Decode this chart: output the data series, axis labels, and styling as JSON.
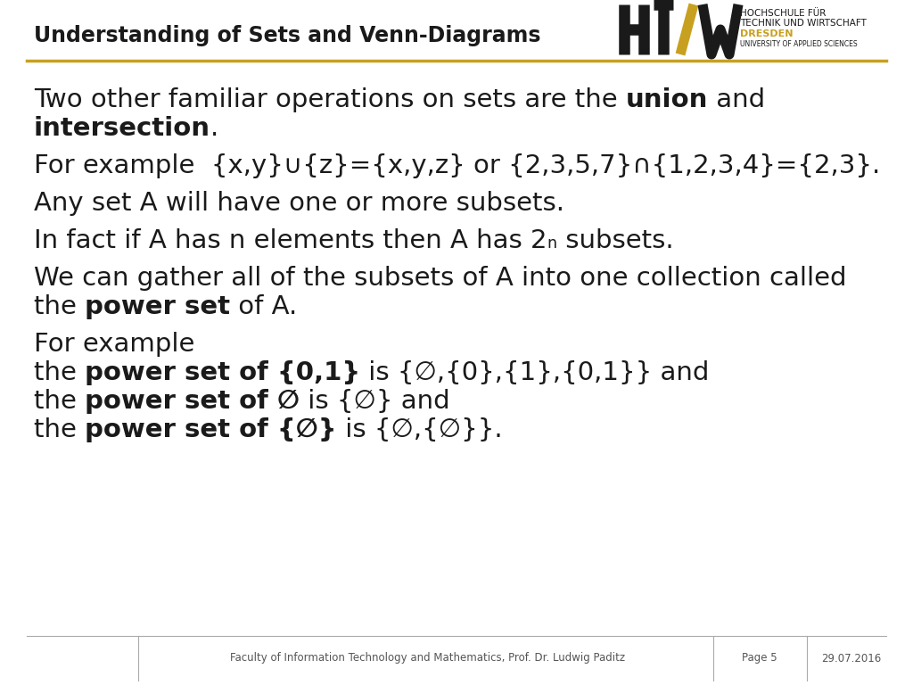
{
  "title": "Understanding of Sets and Venn-Diagrams",
  "title_fontsize": 17,
  "title_color": "#1a1a1a",
  "header_line_color": "#c8a020",
  "background_color": "#ffffff",
  "footer_text": "Faculty of Information Technology and Mathematics, Prof. Dr. Ludwig Paditz",
  "footer_page": "Page 5",
  "footer_date": "29.07.2016",
  "body_fontsize": 21,
  "logo_text_line1": "HOCHSCHULE FÜR",
  "logo_text_line2": "TECHNIK UND WIRTSCHAFT",
  "logo_text_line3": "DRESDEN",
  "logo_text_line4": "UNIVERSITY OF APPLIED SCIENCES"
}
